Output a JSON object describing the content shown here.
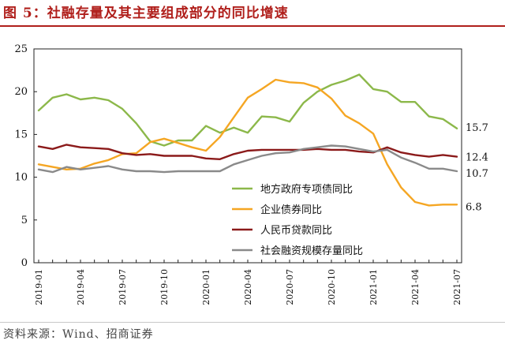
{
  "title": "图 5：社融存量及其主要组成部分的同比增速",
  "source": "资料来源：Wind、招商证券",
  "chart_data": {
    "type": "line",
    "title": "图 5：社融存量及其主要组成部分的同比增速",
    "xlabel": "",
    "ylabel": "",
    "ylim": [
      0,
      25
    ],
    "yticks": [
      0,
      5,
      10,
      15,
      20,
      25
    ],
    "grid": false,
    "legend_position": "center-right",
    "categories": [
      "2019-01",
      "2019-02",
      "2019-03",
      "2019-04",
      "2019-05",
      "2019-06",
      "2019-07",
      "2019-08",
      "2019-09",
      "2019-10",
      "2019-11",
      "2019-12",
      "2020-01",
      "2020-02",
      "2020-03",
      "2020-04",
      "2020-05",
      "2020-06",
      "2020-07",
      "2020-08",
      "2020-09",
      "2020-10",
      "2020-11",
      "2020-12",
      "2021-01",
      "2021-02",
      "2021-03",
      "2021-04",
      "2021-05",
      "2021-06",
      "2021-07"
    ],
    "x_tick_labels": [
      "2019-01",
      "2019-04",
      "2019-07",
      "2019-10",
      "2020-01",
      "2020-04",
      "2020-07",
      "2020-10",
      "2021-01",
      "2021-04",
      "2021-07"
    ],
    "series": [
      {
        "name": "地方政府专项债同比",
        "color": "#8cb84a",
        "end_label": "15.7",
        "values": [
          17.8,
          19.3,
          19.7,
          19.1,
          19.3,
          19.0,
          18.0,
          16.3,
          14.2,
          13.7,
          14.3,
          14.3,
          16.0,
          15.2,
          15.8,
          15.2,
          17.1,
          17.0,
          16.5,
          18.7,
          20.0,
          20.8,
          21.3,
          22.0,
          20.3,
          20.0,
          18.8,
          18.8,
          17.1,
          16.8,
          15.7
        ]
      },
      {
        "name": "企业债券同比",
        "color": "#f5a623",
        "end_label": "6.8",
        "values": [
          11.5,
          11.2,
          10.9,
          11.0,
          11.6,
          12.0,
          12.7,
          12.8,
          14.1,
          14.5,
          14.0,
          13.5,
          13.1,
          14.7,
          17.0,
          19.3,
          20.3,
          21.4,
          21.1,
          21.0,
          20.5,
          19.2,
          17.2,
          16.3,
          15.1,
          11.5,
          8.8,
          7.1,
          6.7,
          6.8,
          6.8
        ]
      },
      {
        "name": "人民币贷款同比",
        "color": "#8b1a1a",
        "end_label": "12.4",
        "values": [
          13.6,
          13.3,
          13.8,
          13.5,
          13.4,
          13.3,
          12.8,
          12.6,
          12.7,
          12.5,
          12.5,
          12.5,
          12.2,
          12.1,
          12.7,
          13.1,
          13.2,
          13.2,
          13.2,
          13.2,
          13.3,
          13.2,
          13.2,
          13.0,
          12.9,
          13.5,
          12.9,
          12.6,
          12.4,
          12.6,
          12.4
        ]
      },
      {
        "name": "社会融资规模存量同比",
        "color": "#8a8a8a",
        "end_label": "10.7",
        "values": [
          10.9,
          10.6,
          11.2,
          10.9,
          11.1,
          11.3,
          10.9,
          10.7,
          10.7,
          10.6,
          10.7,
          10.7,
          10.7,
          10.7,
          11.5,
          12.0,
          12.5,
          12.8,
          12.9,
          13.3,
          13.5,
          13.7,
          13.6,
          13.3,
          13.0,
          13.2,
          12.3,
          11.7,
          11.0,
          11.0,
          10.7
        ]
      }
    ]
  }
}
